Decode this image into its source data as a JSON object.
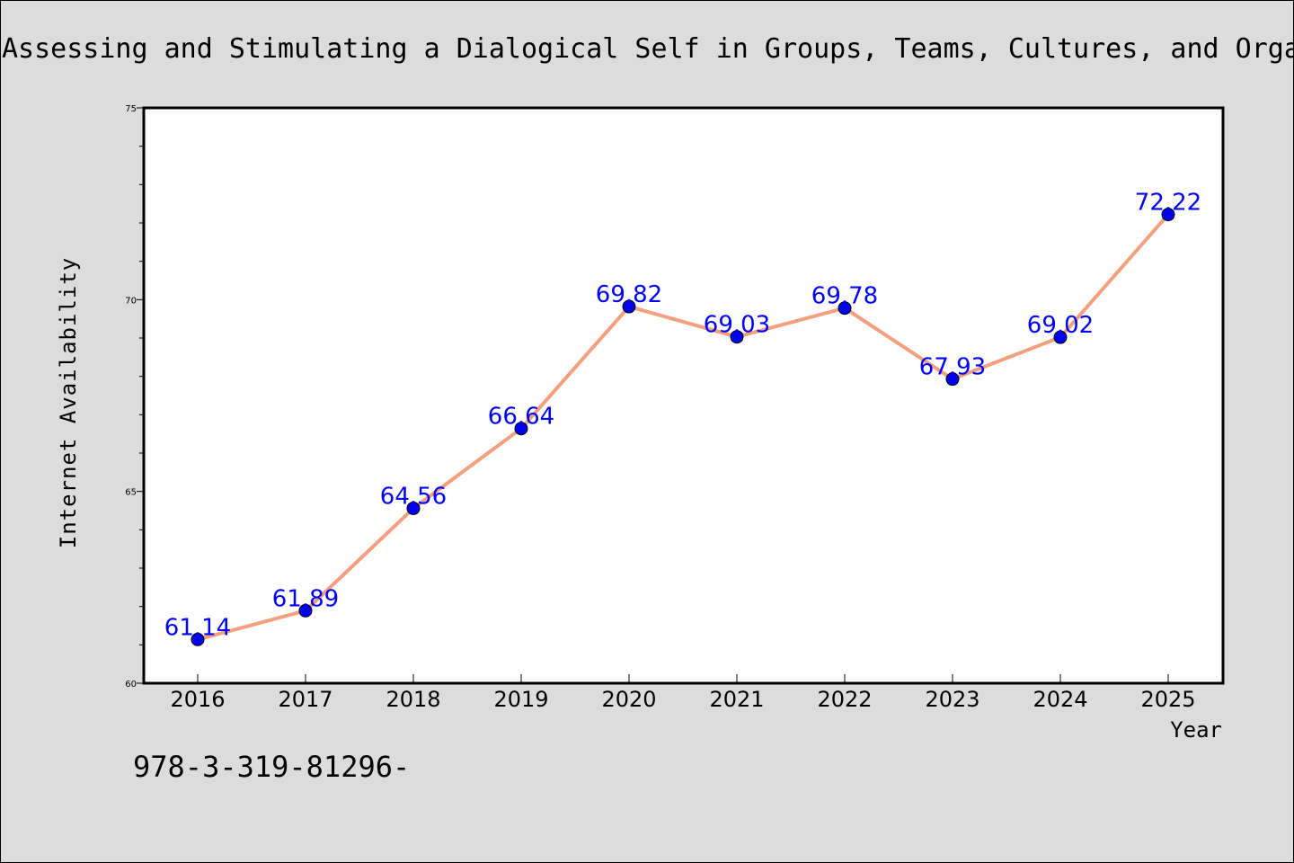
{
  "chart_data": {
    "type": "line",
    "title": "Assessing and Stimulating a Dialogical Self in Groups, Teams, Cultures, and Orga",
    "xlabel": "Year",
    "ylabel": "Internet Availability",
    "x": [
      "2016",
      "2017",
      "2018",
      "2019",
      "2020",
      "2021",
      "2022",
      "2023",
      "2024",
      "2025"
    ],
    "series": [
      {
        "values": [
          61.14,
          61.89,
          64.56,
          66.64,
          69.82,
          69.03,
          69.78,
          67.93,
          69.02,
          72.22
        ],
        "line_color": "#f4a07e",
        "marker_color": "#0000ee",
        "label_color": "#0000ff"
      }
    ],
    "ylim": [
      60,
      75
    ],
    "yticks": [
      "60",
      "65",
      "70",
      "75"
    ],
    "grid": false,
    "legend": "none",
    "background_color": "#dcdcdc",
    "plot_background": "#ffffff"
  },
  "footnote": "978-3-319-81296-"
}
